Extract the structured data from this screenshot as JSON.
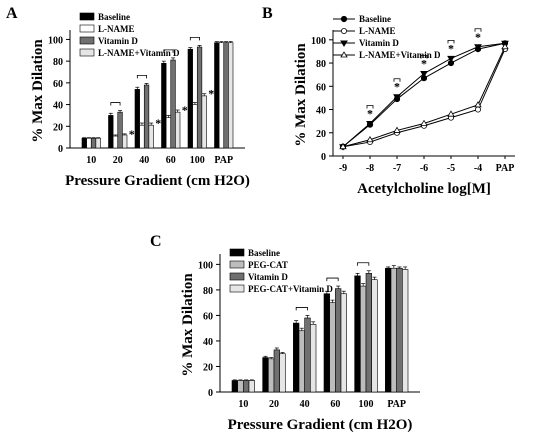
{
  "chart_data": [
    {
      "panel": "A",
      "type": "bar",
      "categories": [
        "10",
        "20",
        "40",
        "60",
        "100",
        "PAP"
      ],
      "series": [
        {
          "name": "Baseline",
          "color": "#000000",
          "values": [
            9,
            30,
            54,
            78,
            91,
            97
          ],
          "errors": [
            0.5,
            2,
            2,
            2,
            1.5,
            1
          ]
        },
        {
          "name": "L-NAME",
          "color": "#ffffff",
          "values": [
            9,
            11,
            21,
            28,
            40,
            97
          ],
          "errors": [
            0.5,
            1,
            2,
            2,
            2,
            1
          ]
        },
        {
          "name": "Vitamin D",
          "color": "#707070",
          "values": [
            9,
            33,
            58,
            81,
            93,
            97
          ],
          "errors": [
            0.5,
            1.5,
            1.5,
            2,
            1.5,
            1
          ]
        },
        {
          "name": "L-NAME+Vitamin D",
          "color": "#e6e6e6",
          "values": [
            9,
            12,
            21,
            33,
            48,
            97
          ],
          "errors": [
            0.5,
            1,
            2,
            2,
            2,
            1
          ]
        }
      ],
      "xlabel": "Pressure Gradient (cm H2O)",
      "ylabel": "% Max Dilation",
      "yticks": [
        "0",
        "20",
        "40",
        "60",
        "80",
        "100"
      ],
      "ylim": [
        0,
        105
      ],
      "annotations": [
        {
          "text": "*",
          "category": "20",
          "series": "L-NAME+Vitamin D"
        },
        {
          "text": "*",
          "category": "40",
          "series": "L-NAME+Vitamin D"
        },
        {
          "text": "*",
          "category": "60",
          "series": "L-NAME+Vitamin D"
        },
        {
          "text": "*",
          "category": "100",
          "series": "L-NAME+Vitamin D"
        }
      ],
      "brackets": [
        "20",
        "40",
        "60",
        "100"
      ]
    },
    {
      "panel": "B",
      "type": "line",
      "categories": [
        "-9",
        "-8",
        "-7",
        "-6",
        "-5",
        "-4",
        "PAP"
      ],
      "series": [
        {
          "name": "Baseline",
          "marker": "circle-filled",
          "values": [
            8,
            27,
            49,
            67,
            80,
            92,
            97
          ]
        },
        {
          "name": "L-NAME",
          "marker": "circle-open",
          "values": [
            8,
            12,
            20,
            26,
            33,
            40,
            92
          ]
        },
        {
          "name": "Vitamin D",
          "marker": "triangle-down-filled",
          "values": [
            8,
            28,
            51,
            71,
            84,
            94,
            97
          ]
        },
        {
          "name": "L-NAME+Vitamin D",
          "marker": "triangle-up-open",
          "values": [
            8,
            14,
            22,
            28,
            36,
            44,
            94
          ]
        }
      ],
      "xlabel": "Acetylcholine log[M]",
      "ylabel": "% Max Dilation",
      "yticks": [
        "0",
        "20",
        "40",
        "60",
        "80",
        "100"
      ],
      "ylim": [
        0,
        105
      ],
      "annotations": [
        {
          "text": "*",
          "category": "-8"
        },
        {
          "text": "*",
          "category": "-7"
        },
        {
          "text": "*",
          "category": "-6"
        },
        {
          "text": "*",
          "category": "-5"
        },
        {
          "text": "*",
          "category": "-4"
        }
      ],
      "brackets": [
        "-8",
        "-7",
        "-6",
        "-5",
        "-4"
      ]
    },
    {
      "panel": "C",
      "type": "bar",
      "categories": [
        "10",
        "20",
        "40",
        "60",
        "100",
        "PAP"
      ],
      "series": [
        {
          "name": "Baseline",
          "color": "#000000",
          "values": [
            9,
            27,
            54,
            77,
            91,
            97
          ],
          "errors": [
            0.5,
            1,
            2,
            2,
            2,
            1
          ]
        },
        {
          "name": "PEG-CAT",
          "color": "#bdbdbd",
          "values": [
            9,
            26,
            48,
            70,
            83,
            97
          ],
          "errors": [
            0.5,
            1,
            2,
            2,
            2,
            2
          ]
        },
        {
          "name": "Vitamin D",
          "color": "#707070",
          "values": [
            9,
            33,
            58,
            81,
            93,
            97
          ],
          "errors": [
            0.5,
            1.5,
            2,
            2,
            2,
            1
          ]
        },
        {
          "name": "PEG-CAT+Vitamin D",
          "color": "#e6e6e6",
          "values": [
            9,
            30,
            53,
            77,
            88,
            96
          ],
          "errors": [
            0.5,
            1,
            2,
            2,
            2,
            2
          ]
        }
      ],
      "xlabel": "Pressure Gradient (cm H2O)",
      "ylabel": "% Max Dilation",
      "yticks": [
        "0",
        "20",
        "40",
        "60",
        "80",
        "100"
      ],
      "ylim": [
        0,
        105
      ],
      "annotations": [],
      "brackets": [
        "40",
        "60",
        "100"
      ]
    }
  ],
  "panel_labels": {
    "a": "A",
    "b": "B",
    "c": "C"
  }
}
